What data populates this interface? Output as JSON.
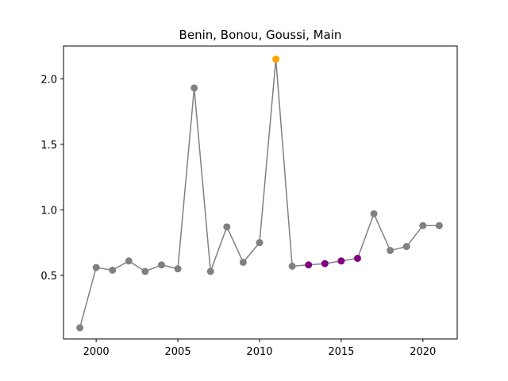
{
  "chart_data": {
    "type": "line",
    "title": "Benin, Bonou, Goussi, Main",
    "xlabel": "",
    "ylabel": "",
    "xlim": [
      1998.0,
      2022.1
    ],
    "ylim": [
      0.015,
      2.25
    ],
    "xticks": [
      2000,
      2005,
      2010,
      2015,
      2020
    ],
    "yticks": [
      0.5,
      1.0,
      1.5,
      2.0
    ],
    "xtick_labels": [
      "2000",
      "2005",
      "2010",
      "2015",
      "2020"
    ],
    "ytick_labels": [
      "0.5",
      "1.0",
      "1.5",
      "2.0"
    ],
    "grid": false,
    "line_color": "#808080",
    "x": [
      1999,
      2000,
      2001,
      2002,
      2003,
      2004,
      2005,
      2006,
      2007,
      2008,
      2009,
      2010,
      2011,
      2012,
      2013,
      2014,
      2015,
      2016,
      2017,
      2018,
      2019,
      2020,
      2021
    ],
    "values": [
      0.1,
      0.56,
      0.54,
      0.61,
      0.53,
      0.58,
      0.55,
      1.93,
      0.53,
      0.87,
      0.6,
      0.75,
      2.15,
      0.57,
      0.58,
      0.59,
      0.61,
      0.63,
      0.97,
      0.69,
      0.72,
      0.88,
      0.88
    ],
    "point_colors": [
      "#808080",
      "#808080",
      "#808080",
      "#808080",
      "#808080",
      "#808080",
      "#808080",
      "#808080",
      "#808080",
      "#808080",
      "#808080",
      "#808080",
      "#FFA500",
      "#808080",
      "#800080",
      "#800080",
      "#800080",
      "#800080",
      "#808080",
      "#808080",
      "#808080",
      "#808080",
      "#808080"
    ],
    "line_segments": [
      [
        1999,
        2012
      ],
      [
        2012,
        2021
      ]
    ]
  }
}
